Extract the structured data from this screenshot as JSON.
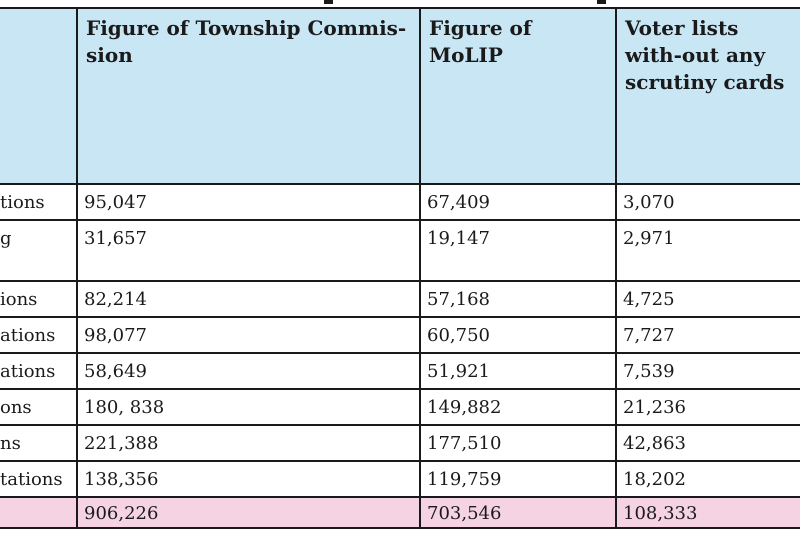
{
  "table": {
    "headers": [
      "",
      "Figure of Township Commis-sion",
      "Figure of MoLIP",
      "Voter lists with-out any scrutiny cards"
    ],
    "rows": [
      {
        "label": "tions",
        "township": "95,047",
        "molip": "67,409",
        "no_scrutiny": "3,070"
      },
      {
        "label": "g",
        "township": "31,657",
        "molip": "19,147",
        "no_scrutiny": "2,971"
      },
      {
        "label": "ions",
        "township": "82,214",
        "molip": "57,168",
        "no_scrutiny": "4,725"
      },
      {
        "label": "ations",
        "township": "98,077",
        "molip": "60,750",
        "no_scrutiny": "7,727"
      },
      {
        "label": "ations",
        "township": "58,649",
        "molip": "51,921",
        "no_scrutiny": "7,539"
      },
      {
        "label": "ons",
        "township": "180, 838",
        "molip": "149,882",
        "no_scrutiny": "21,236"
      },
      {
        "label": "ns",
        "township": "221,388",
        "molip": "177,510",
        "no_scrutiny": "42,863"
      },
      {
        "label": "tations",
        "township": "138,356",
        "molip": "119,759",
        "no_scrutiny": "18,202"
      }
    ],
    "total": {
      "label": "",
      "township": "906,226",
      "molip": "703,546",
      "no_scrutiny": "108,333"
    }
  }
}
